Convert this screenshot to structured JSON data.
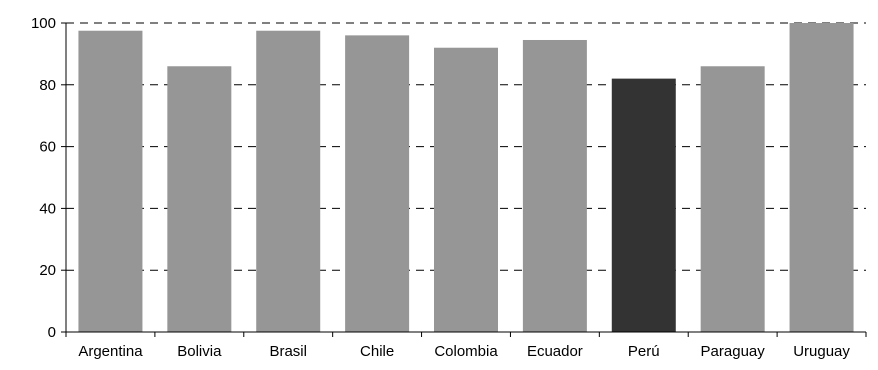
{
  "chart_data": {
    "type": "bar",
    "title": "",
    "xlabel": "",
    "ylabel": "",
    "categories": [
      "Argentina",
      "Bolivia",
      "Brasil",
      "Chile",
      "Colombia",
      "Ecuador",
      "Perú",
      "Paraguay",
      "Uruguay"
    ],
    "values": [
      97.5,
      86,
      97.5,
      96,
      92,
      94.5,
      82,
      86,
      100
    ],
    "ylim": [
      0,
      100
    ],
    "yticks": [
      0,
      20,
      40,
      60,
      80,
      100
    ],
    "grid": "horizontal dashed",
    "legend": "none",
    "colors": {
      "default_bar": "#969696",
      "highlight_bar": "#333333",
      "axis": "#000000"
    },
    "highlight_category": "Perú"
  }
}
